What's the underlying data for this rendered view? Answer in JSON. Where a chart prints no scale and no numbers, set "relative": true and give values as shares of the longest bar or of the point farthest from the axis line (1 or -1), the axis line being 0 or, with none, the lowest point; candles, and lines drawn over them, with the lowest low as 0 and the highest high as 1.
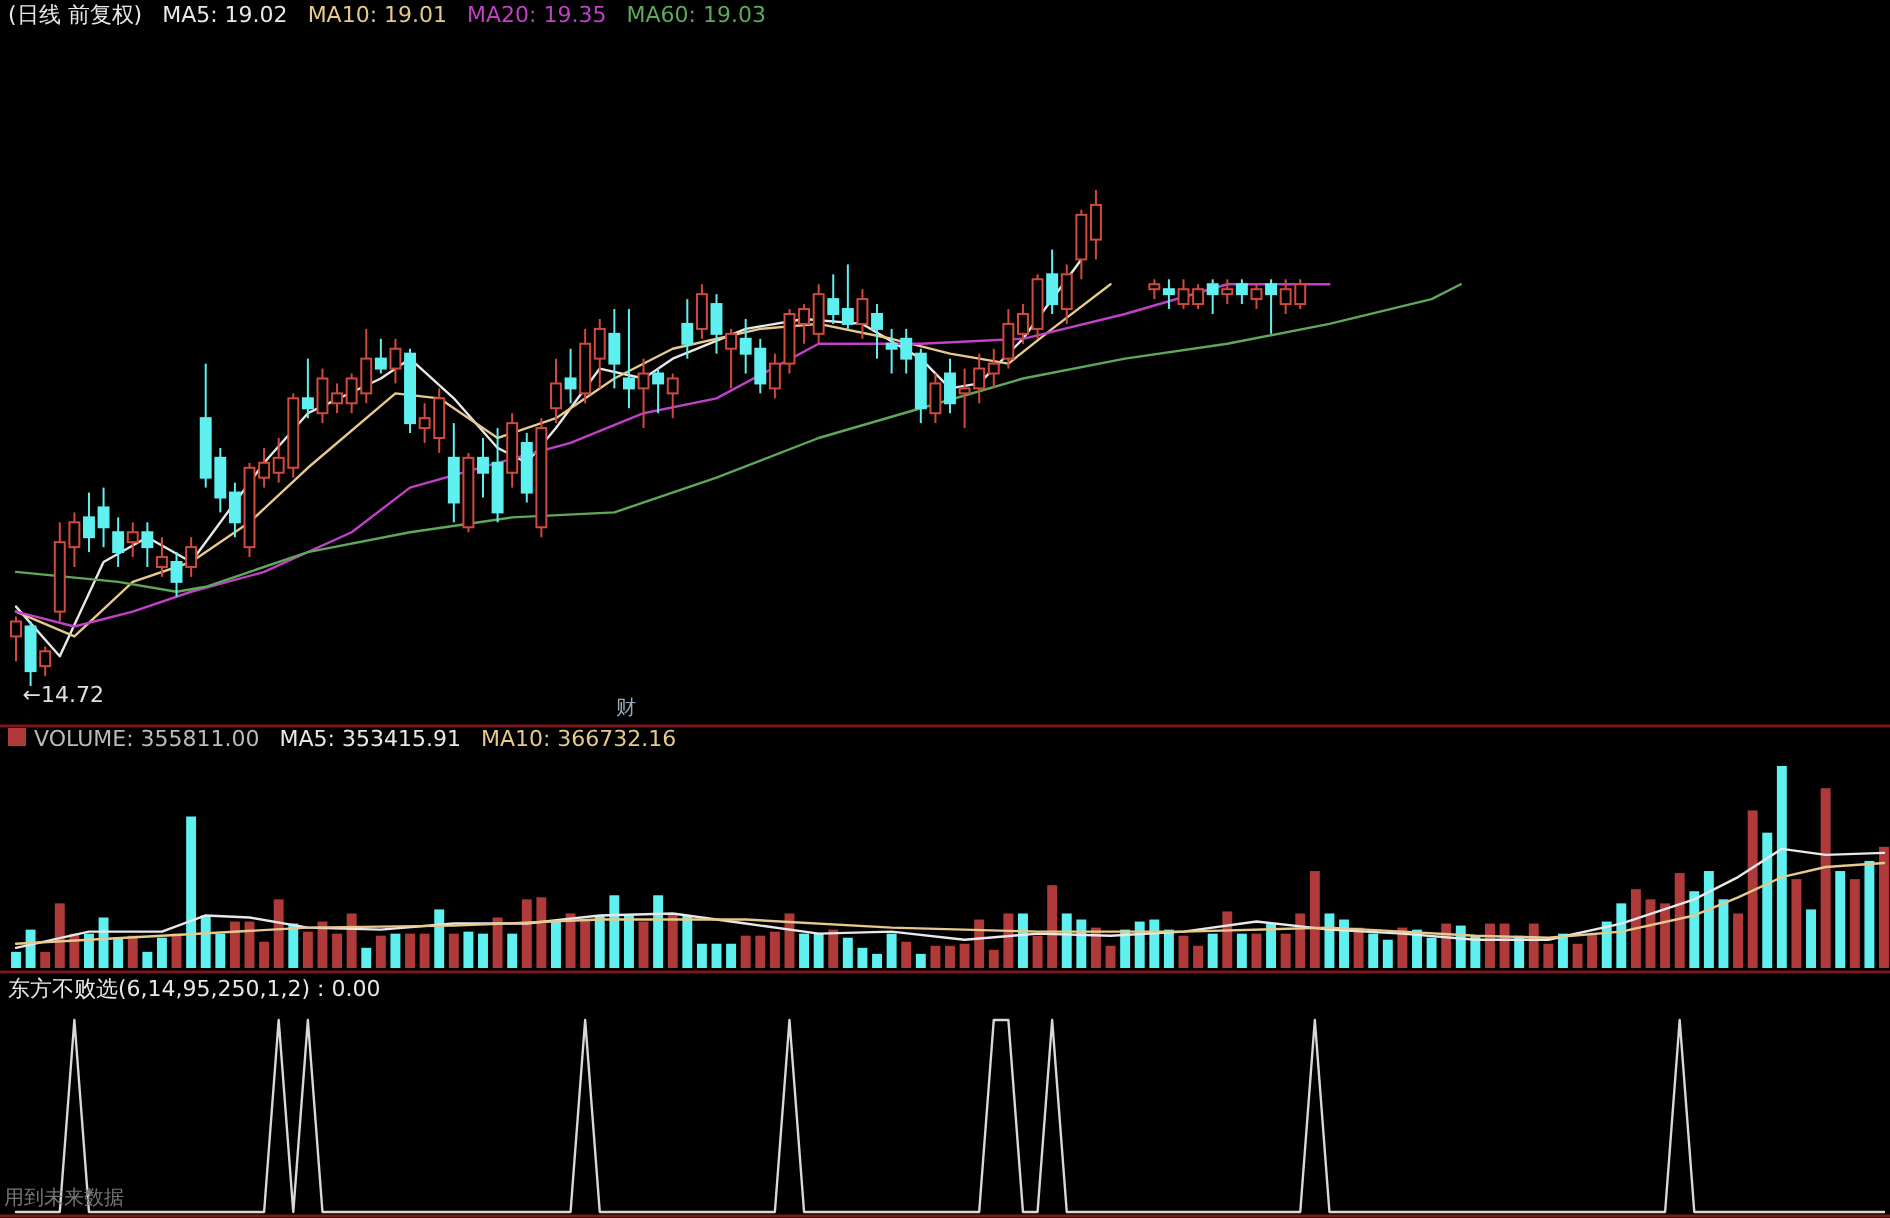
{
  "chart_data": [
    {
      "type": "candlestick",
      "title": "(日线 前复权)",
      "relative": true,
      "legend": "top left",
      "categories": [
        null,
        null,
        null,
        null,
        null,
        null,
        null,
        null,
        null,
        null,
        null,
        null,
        null,
        null,
        null,
        null,
        null,
        null,
        null,
        null,
        null,
        null,
        null,
        null,
        null,
        null,
        null,
        null,
        null,
        null,
        null,
        null,
        null,
        null,
        null,
        null,
        null,
        null,
        null,
        null,
        null,
        null,
        null,
        null,
        null,
        null,
        null,
        null,
        null,
        null,
        null,
        null,
        null,
        null,
        null,
        null,
        null,
        null,
        null,
        null,
        null,
        null,
        null,
        null,
        null,
        null,
        null,
        null,
        null,
        null,
        null,
        null,
        null,
        null,
        null,
        null,
        null,
        null,
        null,
        null,
        null,
        null,
        null,
        null,
        null,
        null,
        null,
        null,
        null,
        null,
        null,
        null,
        null,
        null,
        null,
        null,
        null,
        null,
        null,
        null,
        null,
        null,
        null,
        null,
        null,
        null,
        null,
        null,
        null,
        null,
        null,
        null,
        null,
        null,
        null,
        null,
        null,
        null,
        null,
        null,
        null,
        null,
        null,
        null,
        null,
        null,
        null,
        null,
        null
      ],
      "ohlc": [
        [
          0.1,
          0.14,
          0.05,
          0.13
        ],
        [
          0.12,
          0.13,
          0.0,
          0.03
        ],
        [
          0.04,
          0.08,
          0.02,
          0.07
        ],
        [
          0.15,
          0.33,
          0.13,
          0.29
        ],
        [
          0.28,
          0.35,
          0.24,
          0.33
        ],
        [
          0.34,
          0.39,
          0.27,
          0.3
        ],
        [
          0.36,
          0.4,
          0.28,
          0.32
        ],
        [
          0.31,
          0.34,
          0.24,
          0.27
        ],
        [
          0.29,
          0.33,
          0.26,
          0.31
        ],
        [
          0.31,
          0.33,
          0.24,
          0.28
        ],
        [
          0.24,
          0.3,
          0.22,
          0.26
        ],
        [
          0.25,
          0.27,
          0.18,
          0.21
        ],
        [
          0.24,
          0.3,
          0.22,
          0.28
        ],
        [
          0.54,
          0.65,
          0.4,
          0.42
        ],
        [
          0.46,
          0.48,
          0.35,
          0.38
        ],
        [
          0.39,
          0.41,
          0.3,
          0.33
        ],
        [
          0.28,
          0.45,
          0.26,
          0.44
        ],
        [
          0.42,
          0.48,
          0.4,
          0.45
        ],
        [
          0.43,
          0.5,
          0.41,
          0.46
        ],
        [
          0.44,
          0.59,
          0.42,
          0.58
        ],
        [
          0.58,
          0.66,
          0.54,
          0.56
        ],
        [
          0.55,
          0.64,
          0.53,
          0.62
        ],
        [
          0.57,
          0.61,
          0.55,
          0.59
        ],
        [
          0.57,
          0.63,
          0.55,
          0.62
        ],
        [
          0.59,
          0.72,
          0.57,
          0.66
        ],
        [
          0.66,
          0.7,
          0.63,
          0.64
        ],
        [
          0.64,
          0.7,
          0.61,
          0.68
        ],
        [
          0.67,
          0.68,
          0.51,
          0.53
        ],
        [
          0.52,
          0.57,
          0.49,
          0.54
        ],
        [
          0.5,
          0.6,
          0.47,
          0.58
        ],
        [
          0.46,
          0.53,
          0.33,
          0.37
        ],
        [
          0.32,
          0.47,
          0.31,
          0.46
        ],
        [
          0.46,
          0.5,
          0.38,
          0.43
        ],
        [
          0.45,
          0.52,
          0.33,
          0.35
        ],
        [
          0.43,
          0.55,
          0.4,
          0.53
        ],
        [
          0.49,
          0.51,
          0.37,
          0.39
        ],
        [
          0.32,
          0.54,
          0.3,
          0.52
        ],
        [
          0.56,
          0.66,
          0.53,
          0.61
        ],
        [
          0.62,
          0.68,
          0.57,
          0.6
        ],
        [
          0.59,
          0.72,
          0.57,
          0.69
        ],
        [
          0.66,
          0.74,
          0.6,
          0.72
        ],
        [
          0.71,
          0.76,
          0.6,
          0.65
        ],
        [
          0.62,
          0.76,
          0.56,
          0.6
        ],
        [
          0.6,
          0.66,
          0.52,
          0.63
        ],
        [
          0.63,
          0.64,
          0.55,
          0.61
        ],
        [
          0.59,
          0.63,
          0.54,
          0.62
        ],
        [
          0.73,
          0.78,
          0.66,
          0.69
        ],
        [
          0.72,
          0.81,
          0.7,
          0.79
        ],
        [
          0.77,
          0.79,
          0.67,
          0.71
        ],
        [
          0.68,
          0.72,
          0.6,
          0.71
        ],
        [
          0.7,
          0.74,
          0.63,
          0.67
        ],
        [
          0.68,
          0.7,
          0.59,
          0.61
        ],
        [
          0.6,
          0.67,
          0.58,
          0.65
        ],
        [
          0.65,
          0.76,
          0.63,
          0.75
        ],
        [
          0.73,
          0.77,
          0.69,
          0.76
        ],
        [
          0.71,
          0.81,
          0.69,
          0.79
        ],
        [
          0.78,
          0.83,
          0.73,
          0.75
        ],
        [
          0.76,
          0.85,
          0.72,
          0.73
        ],
        [
          0.73,
          0.8,
          0.7,
          0.78
        ],
        [
          0.75,
          0.77,
          0.66,
          0.72
        ],
        [
          0.69,
          0.72,
          0.63,
          0.68
        ],
        [
          0.7,
          0.72,
          0.63,
          0.66
        ],
        [
          0.67,
          0.68,
          0.53,
          0.56
        ],
        [
          0.55,
          0.63,
          0.53,
          0.61
        ],
        [
          0.63,
          0.66,
          0.55,
          0.57
        ],
        [
          0.59,
          0.64,
          0.52,
          0.6
        ],
        [
          0.6,
          0.67,
          0.57,
          0.64
        ],
        [
          0.63,
          0.68,
          0.6,
          0.65
        ],
        [
          0.66,
          0.76,
          0.64,
          0.73
        ],
        [
          0.71,
          0.77,
          0.69,
          0.75
        ],
        [
          0.72,
          0.83,
          0.7,
          0.82
        ],
        [
          0.83,
          0.88,
          0.75,
          0.77
        ],
        [
          0.76,
          0.85,
          0.73,
          0.83
        ],
        [
          0.86,
          0.96,
          0.82,
          0.95
        ],
        [
          0.9,
          1.0,
          0.86,
          0.97
        ],
        null,
        null,
        null,
        [
          0.8,
          0.82,
          0.78,
          0.81
        ],
        [
          0.8,
          0.82,
          0.76,
          0.79
        ],
        [
          0.77,
          0.82,
          0.76,
          0.8
        ],
        [
          0.77,
          0.81,
          0.76,
          0.8
        ],
        [
          0.81,
          0.82,
          0.75,
          0.79
        ],
        [
          0.79,
          0.82,
          0.77,
          0.8
        ],
        [
          0.81,
          0.82,
          0.77,
          0.79
        ],
        [
          0.78,
          0.81,
          0.76,
          0.8
        ],
        [
          0.81,
          0.82,
          0.71,
          0.79
        ],
        [
          0.77,
          0.82,
          0.75,
          0.8
        ],
        [
          0.77,
          0.82,
          0.76,
          0.81
        ],
        null,
        null,
        null,
        null,
        null,
        null,
        null,
        null,
        null,
        null,
        null,
        null,
        null,
        null,
        null,
        null,
        null,
        null,
        null,
        null,
        null,
        null,
        null,
        null,
        null,
        null,
        null,
        null,
        null,
        null,
        null,
        null,
        null,
        null,
        null,
        null,
        null,
        null,
        null,
        null
      ],
      "series": [
        {
          "name": "MA5: 19.02",
          "type": "line",
          "color": "#e8e8e8",
          "values": [
            0.16,
            null,
            null,
            0.06,
            null,
            null,
            0.25,
            null,
            null,
            0.3,
            null,
            null,
            0.25,
            null,
            null,
            0.37,
            null,
            0.45,
            null,
            null,
            0.55,
            null,
            null,
            null,
            null,
            0.62,
            null,
            0.66,
            null,
            null,
            0.58,
            null,
            null,
            0.48,
            null,
            0.45,
            null,
            0.52,
            null,
            null,
            0.64,
            null,
            null,
            0.62,
            null,
            0.66,
            null,
            null,
            null,
            null,
            0.72,
            null,
            null,
            null,
            0.74,
            null,
            null,
            null,
            0.73,
            null,
            null,
            null,
            0.66,
            null,
            0.6,
            null,
            0.61,
            null,
            null,
            0.7,
            null,
            null,
            null,
            0.86,
            null,
            null,
            null,
            null,
            null,
            null,
            null,
            null,
            null,
            null,
            null,
            null,
            null,
            null,
            null,
            null,
            null,
            null,
            null,
            null,
            null,
            null,
            null,
            null,
            null,
            null,
            null,
            null,
            null,
            null,
            null,
            null,
            null,
            null,
            null,
            null,
            null,
            null,
            null,
            null,
            null,
            null,
            null,
            null,
            null,
            null,
            null,
            null,
            null,
            null,
            null,
            null,
            null,
            null,
            null
          ]
        },
        {
          "name": "MA10: 19.01",
          "type": "line",
          "color": "#e6c98c",
          "values": [
            0.15,
            null,
            null,
            null,
            0.1,
            null,
            null,
            null,
            0.21,
            null,
            null,
            null,
            0.25,
            null,
            null,
            null,
            0.33,
            null,
            null,
            null,
            0.44,
            null,
            null,
            null,
            null,
            null,
            0.59,
            null,
            null,
            0.58,
            null,
            null,
            null,
            0.5,
            null,
            null,
            null,
            0.54,
            null,
            null,
            null,
            0.62,
            null,
            null,
            null,
            0.68,
            null,
            null,
            null,
            null,
            null,
            0.72,
            null,
            null,
            null,
            0.73,
            null,
            null,
            null,
            null,
            0.7,
            null,
            null,
            null,
            0.67,
            null,
            null,
            null,
            0.65,
            null,
            null,
            0.72,
            null,
            null,
            null,
            0.81,
            null,
            null,
            null,
            null,
            null,
            null,
            null,
            null,
            null,
            null,
            null,
            null,
            null,
            null,
            null,
            null,
            null,
            null,
            null,
            null,
            null,
            null,
            null,
            null,
            null,
            null,
            null,
            null,
            null,
            null,
            null,
            null,
            null,
            null,
            null,
            null,
            null,
            null,
            null,
            null,
            null,
            null,
            null,
            null,
            null,
            null,
            null,
            null,
            null,
            null,
            null,
            null,
            null
          ]
        },
        {
          "name": "MA20: 19.35",
          "type": "line",
          "color": "#c040c8",
          "values": [
            0.15,
            null,
            null,
            null,
            0.12,
            null,
            null,
            null,
            0.15,
            null,
            null,
            null,
            0.19,
            null,
            null,
            null,
            null,
            0.23,
            null,
            null,
            null,
            null,
            null,
            0.31,
            null,
            null,
            null,
            0.4,
            null,
            null,
            null,
            null,
            null,
            0.45,
            null,
            null,
            null,
            null,
            0.49,
            null,
            null,
            null,
            null,
            0.55,
            null,
            null,
            null,
            null,
            0.58,
            null,
            null,
            null,
            null,
            null,
            null,
            0.69,
            null,
            null,
            null,
            null,
            null,
            null,
            0.69,
            null,
            null,
            null,
            null,
            null,
            null,
            0.7,
            null,
            null,
            null,
            null,
            null,
            null,
            0.75,
            null,
            null,
            null,
            null,
            null,
            null,
            0.81,
            null,
            null,
            null,
            null,
            null,
            null,
            0.81,
            null,
            null,
            null,
            null,
            null,
            null,
            null,
            null,
            null,
            null,
            null,
            null,
            null,
            null,
            null,
            null,
            null,
            null,
            null,
            null,
            null,
            null,
            null,
            null,
            null,
            null,
            null,
            null,
            null,
            null,
            null,
            null,
            null,
            null,
            null,
            null,
            null,
            null
          ]
        },
        {
          "name": "MA60: 19.03",
          "type": "line",
          "color": "#5fa85a",
          "values": [
            0.23,
            null,
            null,
            null,
            null,
            null,
            null,
            0.21,
            null,
            null,
            null,
            0.19,
            null,
            0.2,
            null,
            null,
            null,
            null,
            null,
            null,
            0.27,
            null,
            null,
            null,
            null,
            null,
            null,
            0.31,
            null,
            null,
            null,
            null,
            null,
            null,
            0.34,
            null,
            null,
            null,
            null,
            null,
            null,
            0.35,
            null,
            null,
            null,
            null,
            null,
            null,
            0.42,
            null,
            null,
            null,
            null,
            null,
            null,
            0.5,
            null,
            null,
            null,
            null,
            null,
            null,
            0.56,
            null,
            null,
            null,
            null,
            null,
            null,
            0.62,
            null,
            null,
            null,
            null,
            null,
            null,
            0.66,
            null,
            null,
            null,
            null,
            null,
            null,
            0.69,
            null,
            null,
            null,
            null,
            null,
            null,
            0.73,
            null,
            null,
            null,
            null,
            null,
            null,
            0.78,
            null,
            0.81,
            null,
            null,
            null,
            null,
            null,
            null,
            null,
            null,
            null,
            null,
            null,
            null,
            null,
            null,
            null,
            null,
            null,
            null,
            null,
            null,
            null,
            null,
            null,
            null,
            null,
            null,
            null,
            null,
            null
          ]
        }
      ],
      "annotations": [
        "←14.72",
        "财"
      ]
    },
    {
      "type": "bar",
      "relative": true,
      "legend": "top left",
      "categories": [
        null,
        null,
        null,
        null,
        null,
        null,
        null,
        null,
        null,
        null,
        null,
        null,
        null,
        null,
        null,
        null,
        null,
        null,
        null,
        null,
        null,
        null,
        null,
        null,
        null,
        null,
        null,
        null,
        null,
        null,
        null,
        null,
        null,
        null,
        null,
        null,
        null,
        null,
        null,
        null,
        null,
        null,
        null,
        null,
        null,
        null,
        null,
        null,
        null,
        null,
        null,
        null,
        null,
        null,
        null,
        null,
        null,
        null,
        null,
        null,
        null,
        null,
        null,
        null,
        null,
        null,
        null,
        null,
        null,
        null,
        null,
        null,
        null,
        null,
        null,
        null,
        null,
        null,
        null,
        null,
        null,
        null,
        null,
        null,
        null,
        null,
        null,
        null,
        null,
        null,
        null,
        null,
        null,
        null,
        null,
        null,
        null,
        null,
        null,
        null,
        null,
        null,
        null,
        null,
        null,
        null,
        null,
        null,
        null,
        null,
        null,
        null,
        null,
        null,
        null,
        null,
        null,
        null,
        null,
        null,
        null,
        null,
        null,
        null,
        null,
        null,
        null,
        null,
        null
      ],
      "series": [
        {
          "name": "VOLUME: 355811.00",
          "type": "bar",
          "values": [
            0.08,
            0.19,
            0.08,
            0.32,
            0.17,
            0.17,
            0.25,
            0.15,
            0.16,
            0.08,
            0.15,
            0.17,
            0.75,
            0.26,
            0.17,
            0.23,
            0.23,
            0.13,
            0.34,
            0.22,
            0.18,
            0.23,
            0.17,
            0.27,
            0.1,
            0.16,
            0.17,
            0.17,
            0.17,
            0.29,
            0.17,
            0.18,
            0.17,
            0.25,
            0.17,
            0.34,
            0.35,
            0.23,
            0.27,
            0.24,
            0.26,
            0.36,
            0.26,
            0.23,
            0.36,
            0.27,
            0.26,
            0.12,
            0.12,
            0.12,
            0.16,
            0.16,
            0.18,
            0.27,
            0.17,
            0.17,
            0.19,
            0.15,
            0.1,
            0.07,
            0.17,
            0.13,
            0.07,
            0.11,
            0.11,
            0.12,
            0.24,
            0.09,
            0.27,
            0.27,
            0.16,
            0.41,
            0.27,
            0.24,
            0.2,
            0.11,
            0.19,
            0.23,
            0.24,
            0.19,
            0.16,
            0.11,
            0.17,
            0.28,
            0.17,
            0.17,
            0.22,
            0.17,
            0.27,
            0.48,
            0.27,
            0.24,
            0.2,
            0.17,
            0.14,
            0.2,
            0.19,
            0.15,
            0.22,
            0.21,
            0.16,
            0.22,
            0.22,
            0.16,
            0.22,
            0.12,
            0.17,
            0.12,
            0.17,
            0.23,
            0.32,
            0.39,
            0.34,
            0.32,
            0.47,
            0.38,
            0.48,
            0.34,
            0.27,
            0.78,
            0.67,
            1.0,
            0.44,
            0.29,
            0.89,
            0.48,
            0.44,
            0.53,
            0.6
          ],
          "colors": [
            "#5ff0f0",
            "#5ff0f0",
            "#b03a3a",
            "#b03a3a",
            "#b03a3a",
            "#5ff0f0",
            "#5ff0f0",
            "#5ff0f0",
            "#b03a3a",
            "#5ff0f0",
            "#5ff0f0",
            "#b03a3a",
            "#5ff0f0",
            "#5ff0f0",
            "#5ff0f0",
            "#b03a3a",
            "#b03a3a",
            "#b03a3a",
            "#b03a3a",
            "#5ff0f0",
            "#b03a3a",
            "#b03a3a",
            "#b03a3a",
            "#b03a3a",
            "#5ff0f0",
            "#b03a3a",
            "#5ff0f0",
            "#b03a3a",
            "#b03a3a",
            "#5ff0f0",
            "#b03a3a",
            "#5ff0f0",
            "#5ff0f0",
            "#b03a3a",
            "#5ff0f0",
            "#b03a3a",
            "#b03a3a",
            "#5ff0f0",
            "#b03a3a",
            "#b03a3a",
            "#5ff0f0",
            "#5ff0f0",
            "#5ff0f0",
            "#b03a3a",
            "#5ff0f0",
            "#b03a3a",
            "#5ff0f0",
            "#5ff0f0",
            "#5ff0f0",
            "#5ff0f0",
            "#b03a3a",
            "#b03a3a",
            "#b03a3a",
            "#b03a3a",
            "#5ff0f0",
            "#5ff0f0",
            "#b03a3a",
            "#5ff0f0",
            "#5ff0f0",
            "#5ff0f0",
            "#5ff0f0",
            "#b03a3a",
            "#5ff0f0",
            "#b03a3a",
            "#b03a3a",
            "#b03a3a",
            "#b03a3a",
            "#b03a3a",
            "#b03a3a",
            "#5ff0f0",
            "#b03a3a",
            "#b03a3a",
            "#5ff0f0",
            "#5ff0f0",
            "#b03a3a",
            "#b03a3a",
            "#5ff0f0",
            "#5ff0f0",
            "#5ff0f0",
            "#5ff0f0",
            "#b03a3a",
            "#b03a3a",
            "#5ff0f0",
            "#b03a3a",
            "#5ff0f0",
            "#b03a3a",
            "#5ff0f0",
            "#b03a3a",
            "#b03a3a",
            "#b03a3a",
            "#5ff0f0",
            "#5ff0f0",
            "#b03a3a",
            "#5ff0f0",
            "#5ff0f0",
            "#b03a3a",
            "#5ff0f0",
            "#5ff0f0",
            "#b03a3a",
            "#5ff0f0",
            "#5ff0f0",
            "#b03a3a",
            "#b03a3a",
            "#5ff0f0",
            "#b03a3a",
            "#b03a3a",
            "#5ff0f0",
            "#b03a3a",
            "#b03a3a",
            "#5ff0f0",
            "#5ff0f0",
            "#b03a3a",
            "#b03a3a",
            "#b03a3a",
            "#b03a3a",
            "#5ff0f0",
            "#5ff0f0",
            "#5ff0f0",
            "#b03a3a",
            "#b03a3a",
            "#5ff0f0",
            "#5ff0f0",
            "#b03a3a",
            "#5ff0f0",
            "#b03a3a",
            "#5ff0f0",
            "#b03a3a",
            "#5ff0f0",
            "#b03a3a"
          ]
        },
        {
          "name": "MA5: 353415.91",
          "type": "line",
          "color": "#e8e8e8",
          "values": [
            0.1,
            null,
            null,
            null,
            null,
            0.18,
            null,
            null,
            null,
            null,
            0.18,
            null,
            null,
            0.26,
            null,
            null,
            0.25,
            null,
            null,
            null,
            0.2,
            null,
            null,
            null,
            null,
            0.19,
            null,
            null,
            null,
            null,
            0.22,
            null,
            null,
            null,
            null,
            0.22,
            null,
            null,
            null,
            null,
            0.26,
            null,
            null,
            null,
            null,
            0.27,
            null,
            null,
            null,
            null,
            0.22,
            null,
            null,
            null,
            null,
            0.17,
            null,
            null,
            null,
            null,
            0.18,
            null,
            null,
            null,
            null,
            0.14,
            null,
            null,
            null,
            null,
            0.17,
            null,
            null,
            null,
            null,
            0.16,
            null,
            null,
            null,
            null,
            0.18,
            null,
            null,
            null,
            null,
            0.23,
            null,
            null,
            null,
            null,
            0.19,
            null,
            null,
            null,
            null,
            0.17,
            null,
            null,
            null,
            null,
            0.14,
            null,
            null,
            null,
            null,
            0.14,
            null,
            null,
            null,
            null,
            0.22,
            null,
            null,
            null,
            null,
            0.34,
            null,
            null,
            0.45,
            null,
            null,
            0.59,
            null,
            null,
            0.56,
            null,
            null,
            null,
            0.57
          ]
        },
        {
          "name": "MA10: 366732.16",
          "type": "line",
          "color": "#e6c98c",
          "values": [
            0.12,
            null,
            null,
            null,
            null,
            null,
            null,
            null,
            null,
            null,
            0.16,
            null,
            null,
            null,
            null,
            null,
            null,
            null,
            null,
            null,
            0.2,
            null,
            null,
            null,
            null,
            null,
            null,
            null,
            null,
            null,
            0.21,
            null,
            null,
            null,
            null,
            null,
            null,
            null,
            null,
            null,
            0.24,
            null,
            null,
            null,
            null,
            null,
            null,
            null,
            null,
            null,
            0.24,
            null,
            null,
            null,
            null,
            null,
            null,
            null,
            null,
            null,
            0.2,
            null,
            null,
            null,
            null,
            null,
            null,
            null,
            null,
            null,
            0.18,
            null,
            null,
            null,
            null,
            null,
            null,
            null,
            null,
            null,
            0.18,
            null,
            null,
            null,
            null,
            null,
            null,
            null,
            null,
            null,
            0.2,
            null,
            null,
            null,
            null,
            null,
            null,
            null,
            null,
            null,
            0.16,
            null,
            null,
            null,
            null,
            0.15,
            null,
            null,
            null,
            null,
            0.18,
            null,
            null,
            null,
            null,
            0.26,
            null,
            null,
            0.35,
            null,
            null,
            0.45,
            null,
            null,
            0.5,
            null,
            null,
            null,
            0.52
          ]
        }
      ]
    },
    {
      "type": "line",
      "relative": true,
      "title": "东方不败选(6,14,95,250,1,2) : 0.00",
      "categories": [
        null,
        null,
        null,
        null,
        null,
        null,
        null,
        null,
        null,
        null,
        null,
        null,
        null,
        null,
        null,
        null,
        null,
        null,
        null,
        null,
        null,
        null,
        null,
        null,
        null,
        null,
        null,
        null,
        null,
        null,
        null,
        null,
        null,
        null,
        null,
        null,
        null,
        null,
        null,
        null,
        null,
        null,
        null,
        null,
        null,
        null,
        null,
        null,
        null,
        null,
        null,
        null,
        null,
        null,
        null,
        null,
        null,
        null,
        null,
        null,
        null,
        null,
        null,
        null,
        null,
        null,
        null,
        null,
        null,
        null,
        null,
        null,
        null,
        null,
        null,
        null,
        null,
        null,
        null,
        null,
        null,
        null,
        null,
        null,
        null,
        null,
        null,
        null,
        null,
        null,
        null,
        null,
        null,
        null,
        null,
        null,
        null,
        null,
        null,
        null,
        null,
        null,
        null,
        null,
        null,
        null,
        null,
        null,
        null,
        null,
        null,
        null,
        null,
        null,
        null,
        null,
        null,
        null,
        null,
        null,
        null,
        null,
        null,
        null,
        null,
        null,
        null,
        null,
        null
      ],
      "series": [
        {
          "color": "#d8d8d8",
          "values": [
            0,
            0,
            0,
            0,
            1,
            0,
            0,
            0,
            0,
            0,
            0,
            0,
            0,
            0,
            0,
            0,
            0,
            0,
            1,
            0,
            1,
            0,
            0,
            0,
            0,
            0,
            0,
            0,
            0,
            0,
            0,
            0,
            0,
            0,
            0,
            0,
            0,
            0,
            0,
            1,
            0,
            0,
            0,
            0,
            0,
            0,
            0,
            0,
            0,
            0,
            0,
            0,
            0,
            1,
            0,
            0,
            0,
            0,
            0,
            0,
            0,
            0,
            0,
            0,
            0,
            0,
            0,
            1,
            1,
            0,
            0,
            1,
            0,
            0,
            0,
            0,
            0,
            0,
            0,
            0,
            0,
            0,
            0,
            0,
            0,
            0,
            0,
            0,
            0,
            1,
            0,
            0,
            0,
            0,
            0,
            0,
            0,
            0,
            0,
            0,
            0,
            0,
            0,
            0,
            0,
            0,
            0,
            0,
            0,
            0,
            0,
            0,
            0,
            0,
            1,
            0,
            0,
            0,
            0,
            0,
            0,
            0,
            0,
            0,
            0,
            0,
            0,
            0,
            0
          ]
        }
      ],
      "annotations": [
        "用到未来数据"
      ]
    }
  ]
}
